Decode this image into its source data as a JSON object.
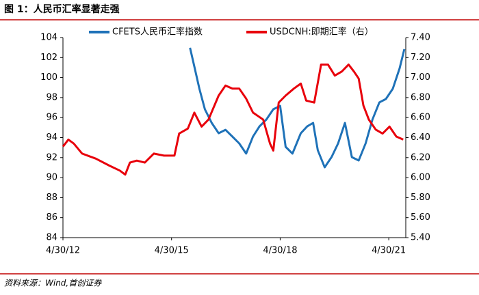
{
  "chart_data": {
    "type": "line",
    "title": "图 1：人民币汇率显著走强",
    "source": "资料来源：Wind,首创证券",
    "legend": "top",
    "xlim": [
      2012.33,
      2021.8
    ],
    "xticks": [
      {
        "value": 2012.33,
        "label": "4/30/12"
      },
      {
        "value": 2015.33,
        "label": "4/30/15"
      },
      {
        "value": 2018.33,
        "label": "4/30/18"
      },
      {
        "value": 2021.33,
        "label": "4/30/21"
      }
    ],
    "ylim": [
      84,
      104
    ],
    "yticks": [
      84,
      86,
      88,
      90,
      92,
      94,
      96,
      98,
      100,
      102,
      104
    ],
    "y2lim": [
      5.4,
      7.4
    ],
    "y2ticks": [
      {
        "value": 5.4,
        "label": "5.40"
      },
      {
        "value": 5.6,
        "label": "5.60"
      },
      {
        "value": 5.8,
        "label": "5.80"
      },
      {
        "value": 6.0,
        "label": "6.00"
      },
      {
        "value": 6.2,
        "label": "6.20"
      },
      {
        "value": 6.4,
        "label": "6.40"
      },
      {
        "value": 6.6,
        "label": "6.60"
      },
      {
        "value": 6.8,
        "label": "6.80"
      },
      {
        "value": 7.0,
        "label": "7.00"
      },
      {
        "value": 7.2,
        "label": "7.20"
      },
      {
        "value": 7.4,
        "label": "7.40"
      }
    ],
    "series": [
      {
        "name": "CFETS人民币汇率指数",
        "color": "#1f72b8",
        "x": [
          2015.84,
          2015.97,
          2016.1,
          2016.25,
          2016.44,
          2016.63,
          2016.82,
          2017.01,
          2017.2,
          2017.39,
          2017.58,
          2017.76,
          2017.95,
          2018.14,
          2018.33,
          2018.48,
          2018.67,
          2018.9,
          2019.08,
          2019.24,
          2019.37,
          2019.56,
          2019.75,
          2019.93,
          2020.12,
          2020.31,
          2020.5,
          2020.69,
          2020.88,
          2021.07,
          2021.25,
          2021.44,
          2021.63,
          2021.76
        ],
        "values": [
          102.98,
          100.93,
          98.88,
          96.83,
          95.47,
          94.44,
          94.78,
          94.1,
          93.42,
          92.4,
          94.1,
          95.13,
          95.81,
          96.83,
          97.17,
          93.08,
          92.4,
          94.44,
          95.13,
          95.47,
          92.74,
          91.03,
          92.05,
          93.42,
          95.47,
          92.05,
          91.71,
          93.42,
          95.81,
          97.52,
          97.86,
          98.88,
          100.93,
          102.84
        ]
      },
      {
        "name": "USDCNH:即期汇率（右）",
        "color": "#e8000b",
        "axis": "y2",
        "x": [
          2012.33,
          2012.48,
          2012.63,
          2012.86,
          2013.24,
          2013.61,
          2013.9,
          2014.05,
          2014.18,
          2014.37,
          2014.59,
          2014.84,
          2015.12,
          2015.41,
          2015.54,
          2015.78,
          2015.96,
          2016.16,
          2016.35,
          2016.63,
          2016.82,
          2017.01,
          2017.2,
          2017.39,
          2017.58,
          2017.86,
          2018.05,
          2018.14,
          2018.29,
          2018.48,
          2018.71,
          2018.9,
          2019.05,
          2019.27,
          2019.46,
          2019.65,
          2019.84,
          2020.03,
          2020.22,
          2020.37,
          2020.5,
          2020.63,
          2020.78,
          2020.97,
          2021.16,
          2021.35,
          2021.54,
          2021.73
        ],
        "values": [
          6.31,
          6.38,
          6.34,
          6.24,
          6.19,
          6.12,
          6.07,
          6.03,
          6.15,
          6.17,
          6.15,
          6.24,
          6.22,
          6.22,
          6.44,
          6.49,
          6.65,
          6.51,
          6.58,
          6.82,
          6.92,
          6.89,
          6.89,
          6.79,
          6.65,
          6.58,
          6.34,
          6.27,
          6.75,
          6.82,
          6.89,
          6.94,
          6.77,
          6.75,
          7.13,
          7.13,
          7.02,
          7.06,
          7.13,
          7.06,
          6.99,
          6.72,
          6.58,
          6.48,
          6.44,
          6.51,
          6.41,
          6.38
        ]
      }
    ]
  }
}
